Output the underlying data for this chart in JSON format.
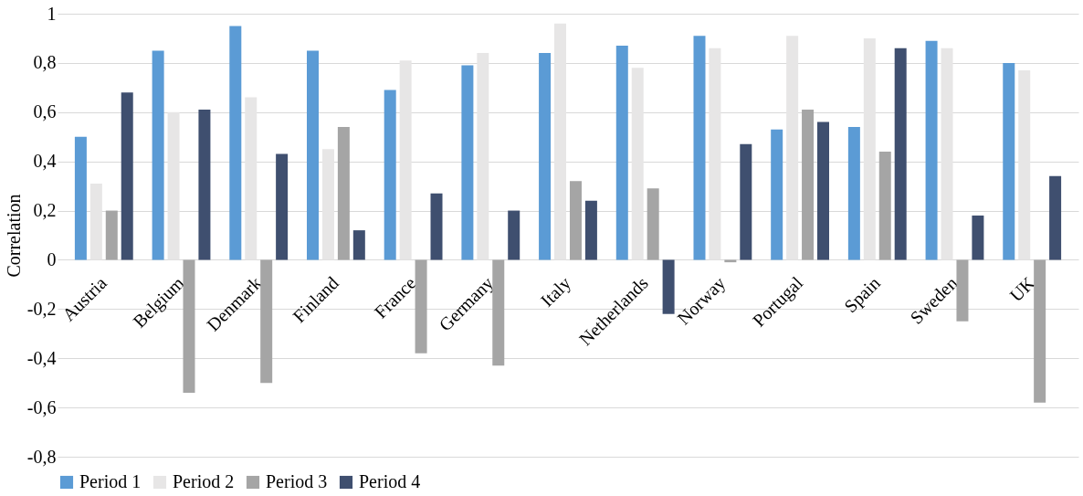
{
  "chart_data": {
    "type": "bar",
    "ylabel": "Correlation",
    "categories": [
      "Austria",
      "Belgium",
      "Denmark",
      "Finland",
      "France",
      "Germany",
      "Italy",
      "Netherlands",
      "Norway",
      "Portugal",
      "Spain",
      "Sweden",
      "UK"
    ],
    "series": [
      {
        "name": "Period 1",
        "color": "#5b9bd5",
        "values": [
          0.5,
          0.85,
          0.95,
          0.85,
          0.69,
          0.79,
          0.84,
          0.87,
          0.91,
          0.53,
          0.54,
          0.89,
          0.8
        ]
      },
      {
        "name": "Period 2",
        "color": "#e7e6e6",
        "values": [
          0.31,
          0.6,
          0.66,
          0.45,
          0.81,
          0.84,
          0.96,
          0.78,
          0.86,
          0.91,
          0.9,
          0.86,
          0.77
        ]
      },
      {
        "name": "Period 3",
        "color": "#a5a5a5",
        "values": [
          0.2,
          -0.54,
          -0.5,
          0.54,
          -0.38,
          -0.43,
          0.32,
          0.29,
          -0.01,
          0.61,
          0.44,
          -0.25,
          -0.58
        ]
      },
      {
        "name": "Period 4",
        "color": "#3f4f6f",
        "values": [
          0.68,
          0.61,
          0.43,
          0.12,
          0.27,
          0.2,
          0.24,
          -0.22,
          0.47,
          0.56,
          0.86,
          0.18,
          0.34
        ]
      }
    ],
    "ylim": [
      -0.8,
      1
    ],
    "yticks": [
      {
        "value": -0.8,
        "label": "-0,8"
      },
      {
        "value": -0.6,
        "label": "-0,6"
      },
      {
        "value": -0.4,
        "label": "-0,4"
      },
      {
        "value": -0.2,
        "label": "-0,2"
      },
      0,
      {
        "value": 0.2,
        "label": "0,2"
      },
      {
        "value": 0.4,
        "label": "0,4"
      },
      {
        "value": 0.6,
        "label": "0,6"
      },
      {
        "value": 0.8,
        "label": "0,8"
      },
      1
    ],
    "grid": "y",
    "legend": "bottom"
  }
}
